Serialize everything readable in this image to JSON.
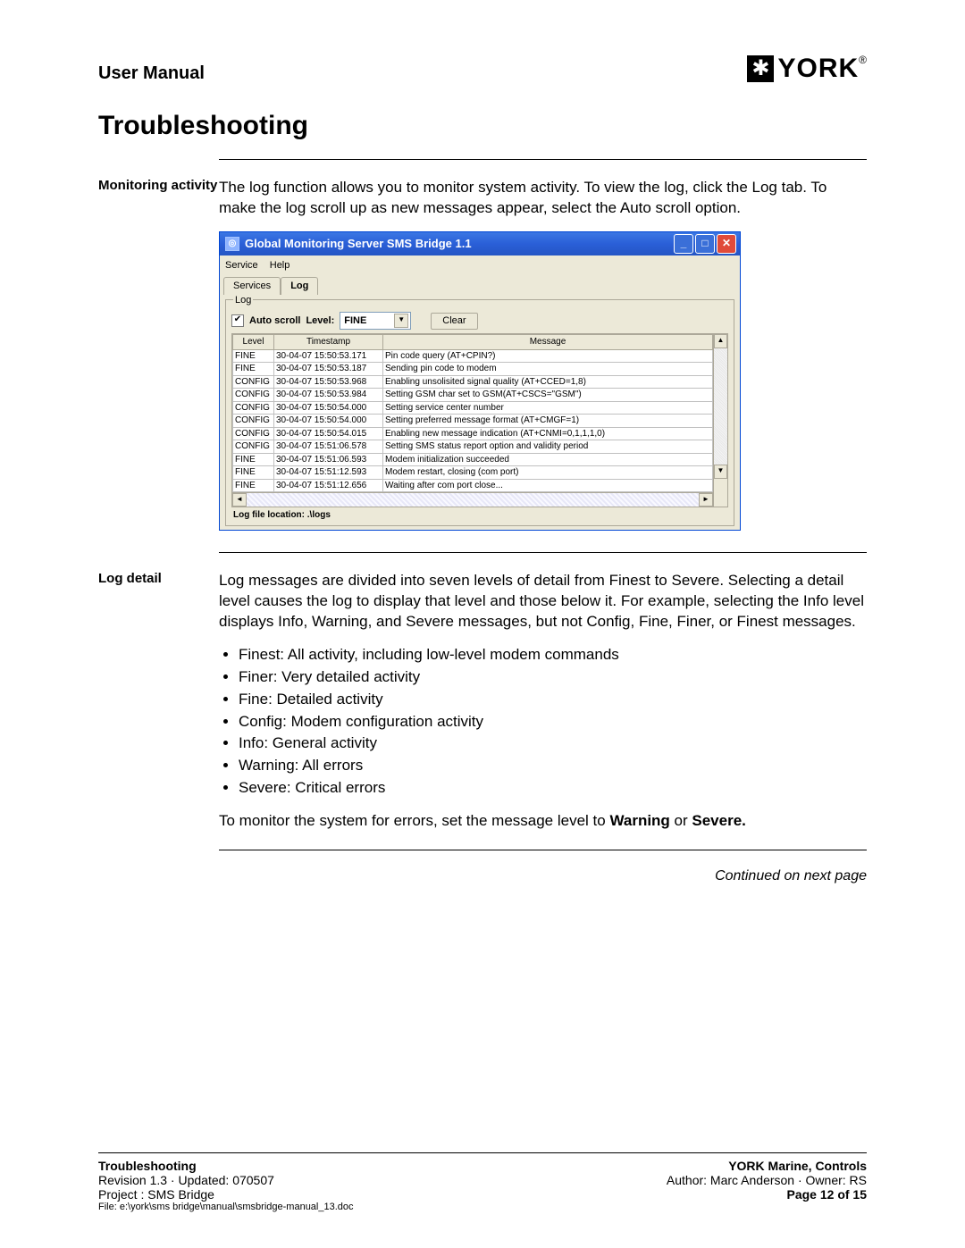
{
  "header": {
    "manual_title": "User Manual",
    "logo_text": "YORK",
    "logo_reg": "®"
  },
  "title": "Troubleshooting",
  "section1": {
    "label": "Monitoring activity",
    "body": "The log function allows you to monitor system activity. To view the log, click the Log tab. To make the log scroll up as new messages appear, select the Auto scroll option."
  },
  "window": {
    "title": "Global Monitoring Server SMS Bridge 1.1",
    "menu": {
      "m1": "Service",
      "m2": "Help"
    },
    "tabs": {
      "t1": "Services",
      "t2": "Log"
    },
    "fieldset_label": "Log",
    "autoscroll_label": "Auto scroll",
    "level_label": "Level:",
    "level_value": "FINE",
    "clear_label": "Clear",
    "columns": {
      "c1": "Level",
      "c2": "Timestamp",
      "c3": "Message"
    },
    "rows": [
      {
        "level": "FINE",
        "ts": "30-04-07 15:50:53.171",
        "msg": "Pin code query (AT+CPIN?)"
      },
      {
        "level": "FINE",
        "ts": "30-04-07 15:50:53.187",
        "msg": "Sending pin code to modem"
      },
      {
        "level": "CONFIG",
        "ts": "30-04-07 15:50:53.968",
        "msg": "Enabling unsolisited signal quality (AT+CCED=1,8)"
      },
      {
        "level": "CONFIG",
        "ts": "30-04-07 15:50:53.984",
        "msg": "Setting GSM char set to GSM(AT+CSCS=\"GSM\")"
      },
      {
        "level": "CONFIG",
        "ts": "30-04-07 15:50:54.000",
        "msg": "Setting service center number"
      },
      {
        "level": "CONFIG",
        "ts": "30-04-07 15:50:54.000",
        "msg": "Setting preferred message format (AT+CMGF=1)"
      },
      {
        "level": "CONFIG",
        "ts": "30-04-07 15:50:54.015",
        "msg": "Enabling new message indication (AT+CNMI=0,1,1,1,0)"
      },
      {
        "level": "CONFIG",
        "ts": "30-04-07 15:51:06.578",
        "msg": "Setting SMS status report option and validity period"
      },
      {
        "level": "FINE",
        "ts": "30-04-07 15:51:06.593",
        "msg": "Modem initialization succeeded"
      },
      {
        "level": "FINE",
        "ts": "30-04-07 15:51:12.593",
        "msg": "Modem restart, closing (com port)"
      },
      {
        "level": "FINE",
        "ts": "30-04-07 15:51:12.656",
        "msg": "Waiting after com port close..."
      }
    ],
    "logfile_label": "Log file location: .\\logs"
  },
  "section2": {
    "label": "Log detail",
    "p1": "Log messages are divided into seven levels of detail from Finest to Severe. Selecting a detail level causes the log to display that level and those below it. For example, selecting the Info level displays Info, Warning, and Severe messages, but not Config, Fine, Finer, or Finest messages.",
    "bullets": {
      "b1": "Finest: All activity, including low-level modem commands",
      "b2": "Finer: Very detailed activity",
      "b3": "Fine: Detailed activity",
      "b4": "Config: Modem configuration activity",
      "b5": "Info: General activity",
      "b6": "Warning: All errors",
      "b7": "Severe: Critical errors"
    },
    "p2_a": "To monitor the system for errors, set the message level to ",
    "p2_b": "Warning",
    "p2_c": " or ",
    "p2_d": "Severe."
  },
  "continued": "Continued on next page",
  "footer": {
    "l1": "Troubleshooting",
    "l2": "Revision 1.3  ·  Updated: 070507",
    "l3": "Project : SMS Bridge",
    "l4": "File: e:\\york\\sms bridge\\manual\\smsbridge-manual_13.doc",
    "r1": "YORK Marine, Controls",
    "r2": "Author: Marc Anderson  ·  Owner: RS",
    "r3": "Page 12 of 15"
  }
}
